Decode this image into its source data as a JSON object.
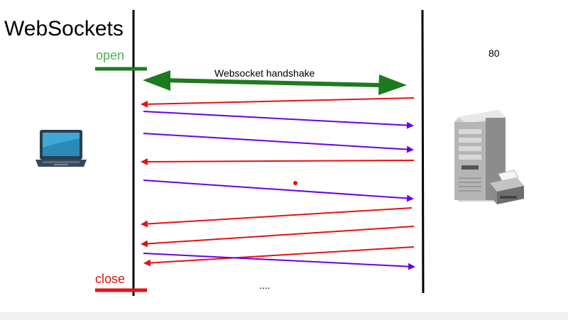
{
  "diagram": {
    "title": "WebSockets",
    "open_label": "open",
    "close_label": "close",
    "handshake_label": "Websocket handshake",
    "port_label": "80",
    "continuation_label": "....",
    "colors": {
      "client_to_server": "#6a00e8",
      "server_to_client": "#e81010",
      "handshake": "#1e7a1e",
      "open": "#4caf50",
      "close": "#e81010",
      "timeline": "#000000"
    },
    "nodes": [
      {
        "id": "client",
        "icon": "laptop-icon"
      },
      {
        "id": "server",
        "icon": "server-tower-icon"
      }
    ],
    "messages": [
      {
        "direction": "server-to-client"
      },
      {
        "direction": "client-to-server"
      },
      {
        "direction": "client-to-server"
      },
      {
        "direction": "server-to-client"
      },
      {
        "direction": "client-to-server"
      },
      {
        "direction": "server-to-client"
      },
      {
        "direction": "server-to-client"
      },
      {
        "direction": "server-to-client"
      },
      {
        "direction": "client-to-server"
      }
    ]
  }
}
